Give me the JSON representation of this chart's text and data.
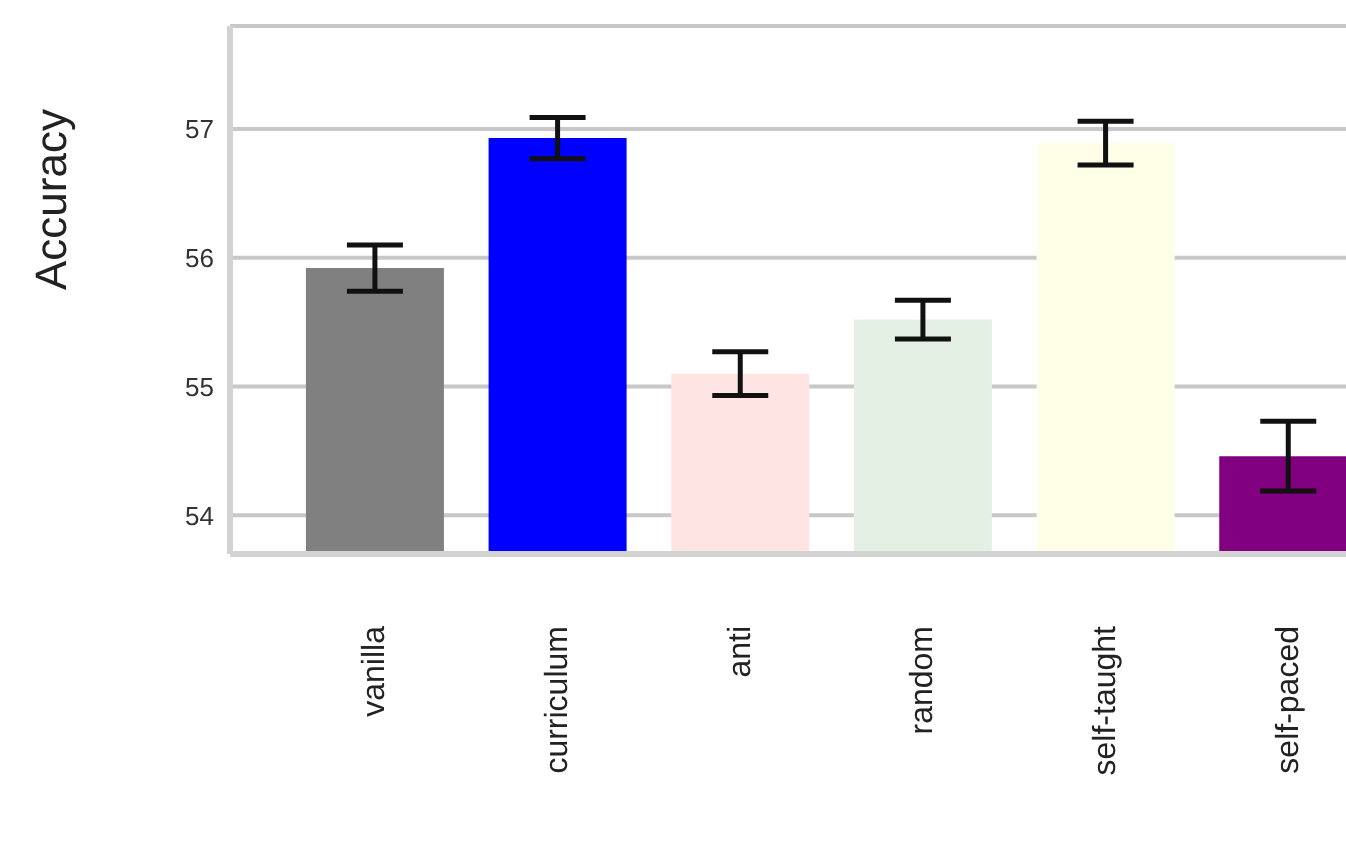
{
  "chart_data": {
    "type": "bar",
    "ylabel": "Accuracy",
    "categories": [
      "vanilla",
      "curriculum",
      "anti",
      "random",
      "self-taught",
      "self-paced"
    ],
    "values": [
      55.92,
      56.93,
      55.1,
      55.52,
      56.89,
      54.46
    ],
    "errors": [
      0.18,
      0.16,
      0.17,
      0.15,
      0.17,
      0.27
    ],
    "colors": [
      "#808080",
      "#0000ff",
      "#ffe4e4",
      "#e5f0e5",
      "#fffee6",
      "#800080"
    ],
    "ylim": [
      53.7,
      57.8
    ],
    "yticks": [
      54,
      55,
      56,
      57
    ],
    "grid": "y",
    "legend": false
  }
}
